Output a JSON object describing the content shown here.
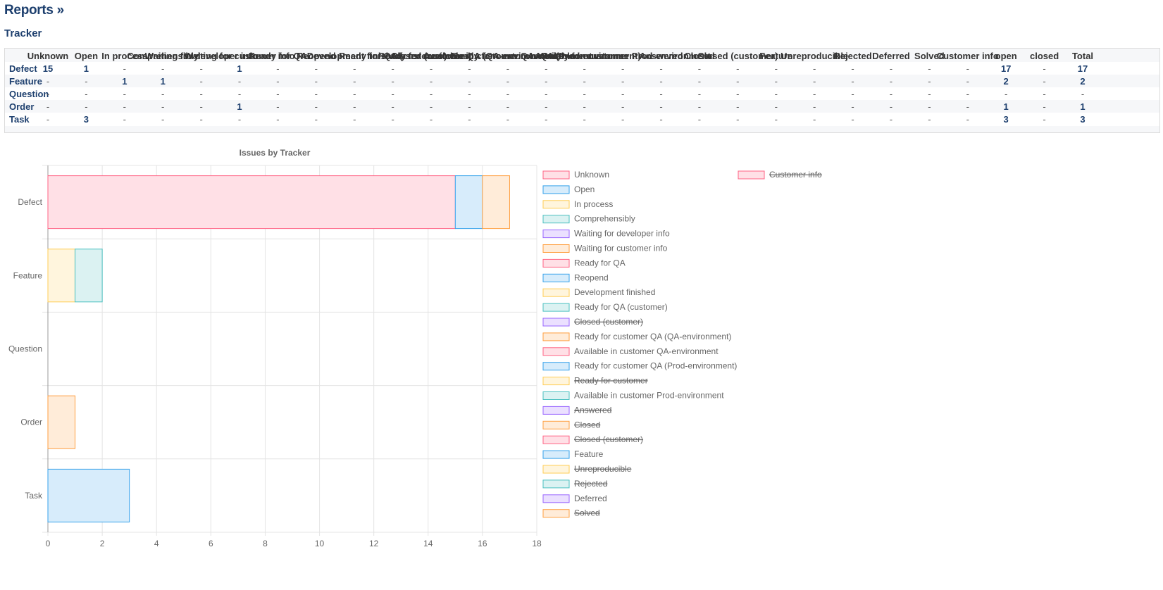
{
  "breadcrumb": "Reports »",
  "section_title": "Tracker",
  "table": {
    "columns": [
      "Unknown",
      "Open",
      "In process",
      "Comprehensibly",
      "Waiting for developer info",
      "Waiting for customer info",
      "Ready for QA",
      "Reopend",
      "Development finished",
      "Ready for QA (customer)",
      "Closed (customer)",
      "Ready for customer QA (QA-environment)",
      "Available in customer QA-environment",
      "Ready for customer QA (Prod-environment)",
      "Ready for customer",
      "Available in customer Prod-environment",
      "Answered",
      "Closed",
      "Closed (customer)",
      "Feature",
      "Unreproducible",
      "Rejected",
      "Deferred",
      "Solved",
      "Customer info",
      "open",
      "closed",
      "Total"
    ],
    "rows": [
      {
        "label": "Defect",
        "cells": [
          "15",
          "1",
          "-",
          "-",
          "-",
          "1",
          "-",
          "-",
          "-",
          "-",
          "-",
          "-",
          "-",
          "-",
          "-",
          "-",
          "-",
          "-",
          "-",
          "-",
          "-",
          "-",
          "-",
          "-",
          "-",
          "17",
          "-",
          "17"
        ]
      },
      {
        "label": "Feature",
        "cells": [
          "-",
          "-",
          "1",
          "1",
          "-",
          "-",
          "-",
          "-",
          "-",
          "-",
          "-",
          "-",
          "-",
          "-",
          "-",
          "-",
          "-",
          "-",
          "-",
          "-",
          "-",
          "-",
          "-",
          "-",
          "-",
          "2",
          "-",
          "2"
        ]
      },
      {
        "label": "Question",
        "cells": [
          "-",
          "-",
          "-",
          "-",
          "-",
          "-",
          "-",
          "-",
          "-",
          "-",
          "-",
          "-",
          "-",
          "-",
          "-",
          "-",
          "-",
          "-",
          "-",
          "-",
          "-",
          "-",
          "-",
          "-",
          "-",
          "-",
          "-",
          "-"
        ]
      },
      {
        "label": "Order",
        "cells": [
          "-",
          "-",
          "-",
          "-",
          "-",
          "1",
          "-",
          "-",
          "-",
          "-",
          "-",
          "-",
          "-",
          "-",
          "-",
          "-",
          "-",
          "-",
          "-",
          "-",
          "-",
          "-",
          "-",
          "-",
          "-",
          "1",
          "-",
          "1"
        ]
      },
      {
        "label": "Task",
        "cells": [
          "-",
          "3",
          "-",
          "-",
          "-",
          "-",
          "-",
          "-",
          "-",
          "-",
          "-",
          "-",
          "-",
          "-",
          "-",
          "-",
          "-",
          "-",
          "-",
          "-",
          "-",
          "-",
          "-",
          "-",
          "-",
          "3",
          "-",
          "3"
        ]
      }
    ]
  },
  "chart_data": {
    "type": "bar",
    "orientation": "horizontal",
    "stacked": true,
    "title": "Issues by Tracker",
    "categories": [
      "Defect",
      "Feature",
      "Question",
      "Order",
      "Task"
    ],
    "xlim": [
      0,
      18
    ],
    "xticks": [
      0,
      2,
      4,
      6,
      8,
      10,
      12,
      14,
      16,
      18
    ],
    "grid": true,
    "legend_position": "right",
    "series": [
      {
        "name": "Unknown",
        "values": [
          15,
          0,
          0,
          0,
          0
        ],
        "fill": "#ffe0e6",
        "stroke": "#ff6384",
        "hidden": false
      },
      {
        "name": "Open",
        "values": [
          1,
          0,
          0,
          0,
          3
        ],
        "fill": "#d7ecfb",
        "stroke": "#36a2eb",
        "hidden": false
      },
      {
        "name": "In process",
        "values": [
          0,
          1,
          0,
          0,
          0
        ],
        "fill": "#fff5dd",
        "stroke": "#ffcd56",
        "hidden": false
      },
      {
        "name": "Comprehensibly",
        "values": [
          0,
          1,
          0,
          0,
          0
        ],
        "fill": "#dbf2f2",
        "stroke": "#4bc0c0",
        "hidden": false
      },
      {
        "name": "Waiting for developer info",
        "values": [
          0,
          0,
          0,
          0,
          0
        ],
        "fill": "#ebe0ff",
        "stroke": "#9966ff",
        "hidden": false
      },
      {
        "name": "Waiting for customer info",
        "values": [
          1,
          0,
          0,
          1,
          0
        ],
        "fill": "#ffecd9",
        "stroke": "#ff9f40",
        "hidden": false
      },
      {
        "name": "Ready for QA",
        "values": [
          0,
          0,
          0,
          0,
          0
        ],
        "fill": "#ffe0e6",
        "stroke": "#ff6384",
        "hidden": false
      },
      {
        "name": "Reopend",
        "values": [
          0,
          0,
          0,
          0,
          0
        ],
        "fill": "#d7ecfb",
        "stroke": "#36a2eb",
        "hidden": false
      },
      {
        "name": "Development finished",
        "values": [
          0,
          0,
          0,
          0,
          0
        ],
        "fill": "#fff5dd",
        "stroke": "#ffcd56",
        "hidden": false
      },
      {
        "name": "Ready for QA (customer)",
        "values": [
          0,
          0,
          0,
          0,
          0
        ],
        "fill": "#dbf2f2",
        "stroke": "#4bc0c0",
        "hidden": false
      },
      {
        "name": "Closed (customer)",
        "values": [
          0,
          0,
          0,
          0,
          0
        ],
        "fill": "#ebe0ff",
        "stroke": "#9966ff",
        "hidden": true
      },
      {
        "name": "Ready for customer QA (QA-environment)",
        "values": [
          0,
          0,
          0,
          0,
          0
        ],
        "fill": "#ffecd9",
        "stroke": "#ff9f40",
        "hidden": false
      },
      {
        "name": "Available in customer QA-environment",
        "values": [
          0,
          0,
          0,
          0,
          0
        ],
        "fill": "#ffe0e6",
        "stroke": "#ff6384",
        "hidden": false
      },
      {
        "name": "Ready for customer QA (Prod-environment)",
        "values": [
          0,
          0,
          0,
          0,
          0
        ],
        "fill": "#d7ecfb",
        "stroke": "#36a2eb",
        "hidden": false
      },
      {
        "name": "Ready for customer",
        "values": [
          0,
          0,
          0,
          0,
          0
        ],
        "fill": "#fff5dd",
        "stroke": "#ffcd56",
        "hidden": true
      },
      {
        "name": "Available in customer Prod-environment",
        "values": [
          0,
          0,
          0,
          0,
          0
        ],
        "fill": "#dbf2f2",
        "stroke": "#4bc0c0",
        "hidden": false
      },
      {
        "name": "Answered",
        "values": [
          0,
          0,
          0,
          0,
          0
        ],
        "fill": "#ebe0ff",
        "stroke": "#9966ff",
        "hidden": true
      },
      {
        "name": "Closed",
        "values": [
          0,
          0,
          0,
          0,
          0
        ],
        "fill": "#ffecd9",
        "stroke": "#ff9f40",
        "hidden": true
      },
      {
        "name": "Closed (customer)",
        "values": [
          0,
          0,
          0,
          0,
          0
        ],
        "fill": "#ffe0e6",
        "stroke": "#ff6384",
        "hidden": true
      },
      {
        "name": "Feature",
        "values": [
          0,
          0,
          0,
          0,
          0
        ],
        "fill": "#d7ecfb",
        "stroke": "#36a2eb",
        "hidden": false
      },
      {
        "name": "Unreproducible",
        "values": [
          0,
          0,
          0,
          0,
          0
        ],
        "fill": "#fff5dd",
        "stroke": "#ffcd56",
        "hidden": true
      },
      {
        "name": "Rejected",
        "values": [
          0,
          0,
          0,
          0,
          0
        ],
        "fill": "#dbf2f2",
        "stroke": "#4bc0c0",
        "hidden": true
      },
      {
        "name": "Deferred",
        "values": [
          0,
          0,
          0,
          0,
          0
        ],
        "fill": "#ebe0ff",
        "stroke": "#9966ff",
        "hidden": false
      },
      {
        "name": "Solved",
        "values": [
          0,
          0,
          0,
          0,
          0
        ],
        "fill": "#ffecd9",
        "stroke": "#ff9f40",
        "hidden": true
      },
      {
        "name": "Customer info",
        "values": [
          0,
          0,
          0,
          0,
          0
        ],
        "fill": "#ffe0e6",
        "stroke": "#ff6384",
        "hidden": true
      }
    ]
  }
}
